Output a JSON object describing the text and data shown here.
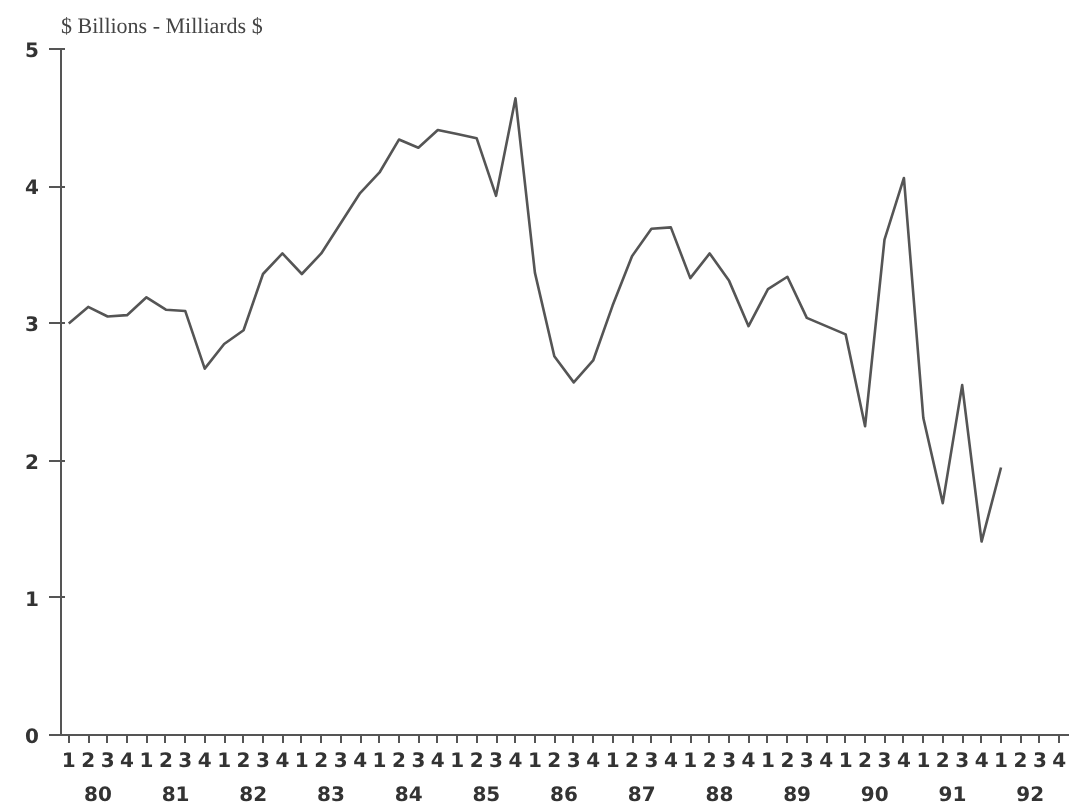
{
  "chart_data": {
    "type": "line",
    "title": "$ Billions - Milliards $",
    "categories": [
      "1",
      "2",
      "3",
      "4",
      "1",
      "2",
      "3",
      "4",
      "1",
      "2",
      "3",
      "4",
      "1",
      "2",
      "3",
      "4",
      "1",
      "2",
      "3",
      "4",
      "1",
      "2",
      "3",
      "4",
      "1",
      "2",
      "3",
      "4",
      "1",
      "2",
      "3",
      "4",
      "1",
      "2",
      "3",
      "4",
      "1",
      "2",
      "3",
      "4",
      "1",
      "2",
      "3",
      "4",
      "1",
      "2",
      "3",
      "4",
      "1",
      "2",
      "3",
      "4"
    ],
    "series": [
      {
        "color": "#555555",
        "values": [
          3.0,
          3.12,
          3.05,
          3.06,
          3.19,
          3.1,
          3.09,
          2.67,
          2.85,
          2.95,
          3.36,
          3.51,
          3.36,
          3.51,
          3.73,
          3.95,
          4.1,
          4.34,
          4.28,
          4.41,
          4.38,
          4.35,
          3.93,
          4.64,
          3.37,
          2.76,
          2.57,
          2.73,
          3.13,
          3.49,
          3.69,
          3.7,
          3.33,
          3.51,
          3.31,
          2.98,
          3.25,
          3.34,
          3.04,
          2.98,
          2.92,
          2.25,
          3.61,
          4.06,
          2.31,
          1.69,
          2.55,
          1.41,
          1.95,
          null,
          null,
          null
        ]
      }
    ],
    "annotations": [
      "80",
      "81",
      "82",
      "83",
      "84",
      "85",
      "86",
      "87",
      "88",
      "89",
      "90",
      "91",
      "92"
    ],
    "ylim": [
      0,
      5
    ],
    "yticks": [
      0,
      1,
      2,
      3,
      4,
      5
    ],
    "grid": false,
    "marker": "none",
    "line_style": "solid"
  }
}
